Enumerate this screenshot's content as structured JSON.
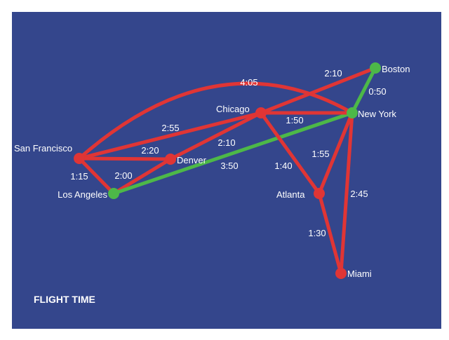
{
  "colors": {
    "background": "#34468c",
    "red": "#e03535",
    "green": "#4db848",
    "text": "#ffffff"
  },
  "caption": "FLIGHT TIME",
  "cities": [
    {
      "id": "san-francisco",
      "name": "San Francisco",
      "highlight": false
    },
    {
      "id": "los-angeles",
      "name": "Los Angeles",
      "highlight": true
    },
    {
      "id": "denver",
      "name": "Denver",
      "highlight": false
    },
    {
      "id": "chicago",
      "name": "Chicago",
      "highlight": false
    },
    {
      "id": "new-york",
      "name": "New York",
      "highlight": true
    },
    {
      "id": "boston",
      "name": "Boston",
      "highlight": true
    },
    {
      "id": "atlanta",
      "name": "Atlanta",
      "highlight": false
    },
    {
      "id": "miami",
      "name": "Miami",
      "highlight": false
    }
  ],
  "routes": [
    {
      "from": "san-francisco",
      "to": "new-york",
      "time": "4:05",
      "highlight": false
    },
    {
      "from": "san-francisco",
      "to": "chicago",
      "time": "2:55",
      "highlight": false
    },
    {
      "from": "san-francisco",
      "to": "denver",
      "time": "2:20",
      "highlight": false
    },
    {
      "from": "san-francisco",
      "to": "los-angeles",
      "time": "1:15",
      "highlight": false
    },
    {
      "from": "los-angeles",
      "to": "denver",
      "time": "2:00",
      "highlight": false
    },
    {
      "from": "denver",
      "to": "chicago",
      "time": "2:10",
      "highlight": false
    },
    {
      "from": "los-angeles",
      "to": "new-york",
      "time": "3:50",
      "highlight": true
    },
    {
      "from": "chicago",
      "to": "boston",
      "time": "2:10",
      "highlight": false
    },
    {
      "from": "chicago",
      "to": "new-york",
      "time": "1:50",
      "highlight": false
    },
    {
      "from": "new-york",
      "to": "boston",
      "time": "0:50",
      "highlight": true
    },
    {
      "from": "chicago",
      "to": "atlanta",
      "time": "1:40",
      "highlight": false
    },
    {
      "from": "new-york",
      "to": "atlanta",
      "time": "1:55",
      "highlight": false
    },
    {
      "from": "new-york",
      "to": "miami",
      "time": "2:45",
      "highlight": false
    },
    {
      "from": "atlanta",
      "to": "miami",
      "time": "1:30",
      "highlight": false
    }
  ]
}
